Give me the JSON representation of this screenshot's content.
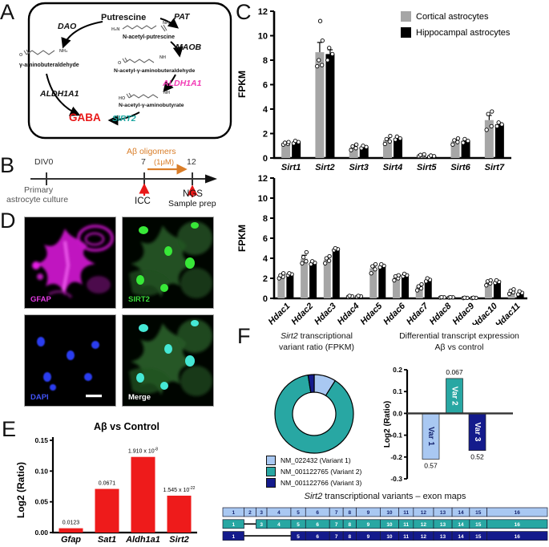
{
  "panelA": {
    "label": "A",
    "putrescine": "Putrescine",
    "pat": "PAT",
    "dao": "DAO",
    "maob": "MAOB",
    "aldh1a1_left": "ALDH1A1",
    "aldh1a1_right": "ALDH1A1",
    "sirt2": "SIRT2",
    "gaba": "GABA",
    "gab_aldehyde": "γ-aminobuteraldehyde",
    "nacetyl_putrescine": "N-acetyl-putrescine",
    "nacetyl_gab_aldehyde": "N-acetyl-γ-aminobuteraldehyde",
    "nacetyl_gab_butyrate": "N-acetyl-γ-aminobutyrate",
    "chem": {
      "o": "O",
      "nh2": "NH₂",
      "h2n": "H₂N",
      "nh": "NH",
      "ho": "HO"
    },
    "colors": {
      "pink": "#f23bb5",
      "teal": "#1aa6a0",
      "red": "#e81717"
    }
  },
  "panelB": {
    "label": "B",
    "div0": "DIV0",
    "day7": "7",
    "day12": "12",
    "ab_oligomers": "Aβ oligomers",
    "conc": "(1μM)",
    "primary_line1": "Primary",
    "primary_line2": "astrocyte culture",
    "icc": "ICC",
    "ngs": "NGS",
    "sample_prep": "Sample prep",
    "accent_orange": "#d97d28",
    "accent_red": "#e81717"
  },
  "panelC": {
    "label": "C"
  },
  "panelD": {
    "label": "D",
    "tiles": [
      {
        "label": "GFAP",
        "color": "#e23ae2"
      },
      {
        "label": "SIRT2",
        "color": "#3bdc3b"
      },
      {
        "label": "DAPI",
        "color": "#4153f5"
      },
      {
        "label": "Merge",
        "color": "#ffffff"
      }
    ]
  },
  "panelE": {
    "label": "E"
  },
  "panelF": {
    "label": "F"
  },
  "chart_data": [
    {
      "id": "sirt-fpkm",
      "type": "bar",
      "title": "",
      "ylabel": "FPKM",
      "ylim": [
        0,
        12
      ],
      "yticks": [
        0,
        2,
        4,
        6,
        8,
        10,
        12
      ],
      "legend_position": "top-right",
      "grid": false,
      "categories": [
        "Sirt1",
        "Sirt2",
        "Sirt3",
        "Sirt4",
        "Sirt5",
        "Sirt6",
        "Sirt7"
      ],
      "series": [
        {
          "name": "Cortical astrocytes",
          "color": "#a6a6a6",
          "values": [
            1.2,
            8.65,
            0.85,
            1.45,
            0.2,
            1.35,
            3.1
          ],
          "sem": [
            0.06,
            0.8,
            0.1,
            0.15,
            0.03,
            0.12,
            0.38
          ],
          "points": [
            [
              1.1,
              1.15,
              1.25,
              1.3
            ],
            [
              7.5,
              7.6,
              8.0,
              9.6,
              11.2
            ],
            [
              0.65,
              0.8,
              0.95,
              1.1
            ],
            [
              1.15,
              1.35,
              1.55,
              1.8
            ],
            [
              0.15,
              0.2,
              0.25,
              0.3
            ],
            [
              1.1,
              1.3,
              1.45,
              1.6
            ],
            [
              2.3,
              2.6,
              3.6,
              3.8
            ]
          ]
        },
        {
          "name": "Hippocampal astrocytes",
          "color": "#000000",
          "values": [
            1.3,
            8.5,
            0.9,
            1.6,
            0.15,
            1.4,
            2.75
          ],
          "sem": [
            0.06,
            0.35,
            0.08,
            0.1,
            0.02,
            0.1,
            0.12
          ],
          "points": [
            [
              1.2,
              1.3,
              1.4
            ],
            [
              8.0,
              8.5,
              9.0
            ],
            [
              0.8,
              0.9,
              1.0
            ],
            [
              1.5,
              1.6,
              1.75
            ],
            [
              0.1,
              0.15,
              0.2
            ],
            [
              1.25,
              1.4,
              1.55
            ],
            [
              2.6,
              2.75,
              2.9
            ]
          ]
        }
      ]
    },
    {
      "id": "hdac-fpkm",
      "type": "bar",
      "title": "",
      "ylabel": "FPKM",
      "ylim": [
        0,
        12
      ],
      "yticks": [
        0,
        2,
        4,
        6,
        8,
        10,
        12
      ],
      "grid": false,
      "categories": [
        "Hdac1",
        "Hdac2",
        "Hdac3",
        "Hdac4",
        "Hdac5",
        "Hdac6",
        "Hdac7",
        "Hdac8",
        "Hdac9",
        "Hdac10",
        "Hdac11"
      ],
      "series": [
        {
          "name": "Cortical astrocytes",
          "color": "#a6a6a6",
          "values": [
            2.2,
            3.95,
            3.85,
            0.2,
            3.0,
            2.05,
            1.15,
            0.1,
            0.05,
            1.55,
            0.65
          ],
          "sem": [
            0.12,
            0.35,
            0.18,
            0.02,
            0.2,
            0.12,
            0.14,
            0.02,
            0.01,
            0.12,
            0.08
          ],
          "points": [
            [
              2.0,
              2.15,
              2.3,
              2.5
            ],
            [
              3.5,
              3.7,
              4.1,
              4.6
            ],
            [
              3.5,
              3.75,
              4.0,
              4.2
            ],
            [
              0.15,
              0.2,
              0.25
            ],
            [
              2.5,
              2.9,
              3.2,
              3.4
            ],
            [
              1.8,
              2.0,
              2.2,
              2.3
            ],
            [
              0.8,
              1.0,
              1.2,
              1.4
            ],
            [
              0.08,
              0.1,
              0.12
            ],
            [
              0.03,
              0.05,
              0.07
            ],
            [
              1.3,
              1.5,
              1.7,
              1.8
            ],
            [
              0.45,
              0.6,
              0.75,
              0.9
            ]
          ]
        },
        {
          "name": "Hippocampal astrocytes",
          "color": "#000000",
          "values": [
            2.4,
            3.55,
            4.9,
            0.2,
            3.25,
            2.3,
            1.85,
            0.1,
            0.05,
            1.65,
            0.55
          ],
          "sem": [
            0.08,
            0.12,
            0.1,
            0.02,
            0.12,
            0.08,
            0.1,
            0.02,
            0.01,
            0.08,
            0.06
          ],
          "points": [
            [
              2.3,
              2.4,
              2.5
            ],
            [
              3.4,
              3.55,
              3.7
            ],
            [
              4.8,
              4.9,
              5.0
            ],
            [
              0.15,
              0.2,
              0.25
            ],
            [
              3.1,
              3.25,
              3.4
            ],
            [
              2.2,
              2.3,
              2.45
            ],
            [
              1.7,
              1.85,
              2.0
            ],
            [
              0.08,
              0.1,
              0.12
            ],
            [
              0.03,
              0.05,
              0.07
            ],
            [
              1.55,
              1.65,
              1.8
            ],
            [
              0.4,
              0.55,
              0.7
            ]
          ]
        }
      ]
    },
    {
      "id": "ab-vs-control",
      "type": "bar",
      "title": "Aβ vs Control",
      "ylabel": "Log2 (Ratio)",
      "ylim": [
        0,
        0.15
      ],
      "yticks": [
        0,
        0.05,
        0.1,
        0.15
      ],
      "ytick_labels": [
        "0.00",
        "0.05",
        "0.10",
        "0.15"
      ],
      "bar_color": "#ee1b1b",
      "grid": false,
      "categories": [
        "Gfap",
        "Sat1",
        "Aldh1a1",
        "Sirt2"
      ],
      "values": [
        0.007,
        0.071,
        0.123,
        0.06
      ],
      "bar_labels": [
        {
          "text": "0.0123"
        },
        {
          "text": "0.0671"
        },
        {
          "text": "1.910 x 10",
          "sup": "-8"
        },
        {
          "text": "1.545 x 10",
          "sup": "-22"
        }
      ]
    },
    {
      "id": "sirt2-variant-donut",
      "type": "pie",
      "title_italic": "Sirt2",
      "title_rest": " transcriptional",
      "title_line2": "variant ratio (FPKM)",
      "values": [
        9,
        88.5,
        2.5
      ],
      "labels": [
        "NM_022432 (Variant 1)",
        "NM_001122765 (Variant 2)",
        "NM_001122766 (Variant 3)"
      ],
      "colors": [
        "#a9c8f2",
        "#28a7a3",
        "#141b8c"
      ]
    },
    {
      "id": "variant-log2",
      "type": "bar",
      "title_line1": "Differential transcript expression",
      "title_line2": "Aβ vs control",
      "ylabel": "Log2 (Ratio)",
      "ylim": [
        -0.3,
        0.2
      ],
      "yticks": [
        0.2,
        0.1,
        0,
        -0.1,
        -0.2,
        -0.3
      ],
      "ytick_labels": [
        "0.2",
        "0.1",
        "0.0",
        "-0.1",
        "-0.2",
        "-0.3"
      ],
      "categories": [
        "Var 1",
        "Var 2",
        "Var 3"
      ],
      "values": [
        -0.21,
        0.16,
        -0.17
      ],
      "colors": [
        "#a9c8f2",
        "#28a7a3",
        "#141b8c"
      ],
      "label_colors": [
        "#16246f",
        "#ffffff",
        "#ffffff"
      ],
      "value_labels": [
        "0.57",
        "0.067",
        "0.52"
      ]
    }
  ],
  "exon_maps": {
    "title_italic": "Sirt2",
    "title_rest": " transcriptional variants – exon maps",
    "exon_numbers": [
      1,
      2,
      3,
      4,
      5,
      6,
      7,
      8,
      9,
      10,
      11,
      12,
      13,
      14,
      15,
      16
    ],
    "exon_widths": [
      78,
      44,
      40,
      88,
      54,
      88,
      50,
      48,
      88,
      68,
      54,
      74,
      68,
      64,
      64,
      222
    ],
    "variants": [
      {
        "name": "Variant 1",
        "color": "#a9c8f2",
        "text": "#15246e",
        "exons": [
          1,
          2,
          3,
          4,
          5,
          6,
          7,
          8,
          9,
          10,
          11,
          12,
          13,
          14,
          15,
          16
        ]
      },
      {
        "name": "Variant 2",
        "color": "#28a7a3",
        "text": "#ffffff",
        "exons": [
          1,
          3,
          4,
          5,
          6,
          7,
          8,
          9,
          10,
          11,
          12,
          13,
          14,
          15,
          16
        ]
      },
      {
        "name": "Variant 3",
        "color": "#141b8c",
        "text": "#ffffff",
        "exons": [
          1,
          5,
          6,
          7,
          8,
          9,
          10,
          11,
          12,
          13,
          14,
          15,
          16
        ]
      }
    ]
  }
}
